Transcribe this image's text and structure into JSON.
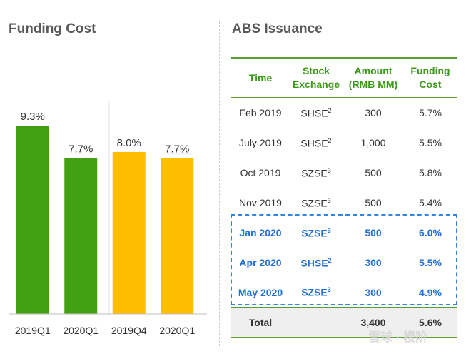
{
  "left_title": "Funding Cost",
  "right_title": "ABS Issuance",
  "colors": {
    "green": "#43a012",
    "yellow": "#ffbf00",
    "header_green": "#3c9a1a",
    "highlight_blue": "#1f6fd9"
  },
  "chart_data": {
    "type": "bar",
    "title": "Funding Cost",
    "categories": [
      "2019Q1",
      "2020Q1",
      "2019Q4",
      "2020Q1"
    ],
    "values": [
      9.3,
      7.7,
      8.0,
      7.7
    ],
    "value_labels": [
      "9.3%",
      "7.7%",
      "8.0%",
      "7.7%"
    ],
    "bar_colors": [
      "#43a012",
      "#43a012",
      "#ffbf00",
      "#ffbf00"
    ],
    "unit": "%",
    "ylim": [
      0,
      10.5
    ],
    "grid": false,
    "xlabel": "",
    "ylabel": ""
  },
  "table": {
    "headers": [
      [
        "Time"
      ],
      [
        "Stock",
        "Exchange"
      ],
      [
        "Amount",
        "(RMB MM)"
      ],
      [
        "Funding",
        "Cost"
      ]
    ],
    "rows": [
      {
        "time": "Feb 2019",
        "exchange": "SHSE",
        "sup": "2",
        "amount": "300",
        "cost": "5.7%",
        "highlight": false
      },
      {
        "time": "July 2019",
        "exchange": "SHSE",
        "sup": "2",
        "amount": "1,000",
        "cost": "5.5%",
        "highlight": false
      },
      {
        "time": "Oct 2019",
        "exchange": "SZSE",
        "sup": "3",
        "amount": "500",
        "cost": "5.8%",
        "highlight": false
      },
      {
        "time": "Nov 2019",
        "exchange": "SZSE",
        "sup": "3",
        "amount": "500",
        "cost": "5.4%",
        "highlight": false
      },
      {
        "time": "Jan 2020",
        "exchange": "SZSE",
        "sup": "3",
        "amount": "500",
        "cost": "6.0%",
        "highlight": true
      },
      {
        "time": "Apr 2020",
        "exchange": "SHSE",
        "sup": "2",
        "amount": "300",
        "cost": "5.5%",
        "highlight": true
      },
      {
        "time": "May 2020",
        "exchange": "SZSE",
        "sup": "3",
        "amount": "300",
        "cost": "4.9%",
        "highlight": true
      }
    ],
    "total": {
      "label": "Total",
      "amount": "3,400",
      "cost": "5.6%"
    }
  },
  "watermark": "雪球 · 楼阶"
}
